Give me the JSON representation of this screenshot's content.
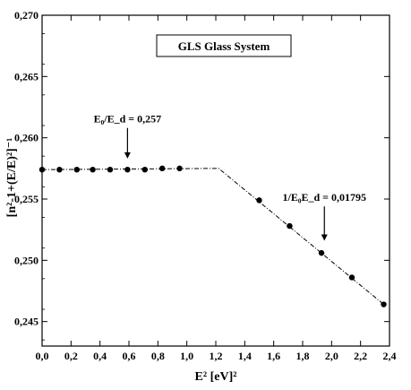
{
  "chart_data": {
    "type": "scatter",
    "title": "GLS Glass System",
    "xlabel": "E² [eV]²",
    "ylabel": "[n²-1+(E/E)²]⁻¹",
    "xlim": [
      0.0,
      2.4
    ],
    "ylim": [
      0.243,
      0.27
    ],
    "x_ticks": [
      "0,0",
      "0,2",
      "0,4",
      "0,6",
      "0,8",
      "1,0",
      "1,2",
      "1,4",
      "1,6",
      "1,8",
      "2,0",
      "2,2",
      "2,4"
    ],
    "y_ticks": [
      "0,245",
      "0,250",
      "0,255",
      "0,260",
      "0,265",
      "0,270"
    ],
    "y_tick_values": [
      0.245,
      0.25,
      0.255,
      0.26,
      0.265,
      0.27
    ],
    "grid": false,
    "series": [
      {
        "points": [
          [
            0.0,
            0.2574
          ],
          [
            0.12,
            0.2574
          ],
          [
            0.24,
            0.2574
          ],
          [
            0.35,
            0.2574
          ],
          [
            0.47,
            0.2574
          ],
          [
            0.59,
            0.2574
          ],
          [
            0.71,
            0.2574
          ],
          [
            0.83,
            0.2575
          ],
          [
            0.95,
            0.2575
          ],
          [
            1.5,
            0.2549
          ],
          [
            1.71,
            0.2528
          ],
          [
            1.93,
            0.2506
          ],
          [
            2.14,
            0.2486
          ],
          [
            2.36,
            0.2464
          ]
        ]
      }
    ],
    "fit_line": [
      [
        0.0,
        0.2574
      ],
      [
        1.22,
        0.2575
      ],
      [
        2.36,
        0.2464
      ]
    ],
    "annotations": [
      {
        "text": "E₀/E_d = 0,257",
        "arrow_x": 0.59,
        "arrow_from": 0.2608,
        "arrow_to": 0.2583
      },
      {
        "text": "1/E₀E_d = 0,01795",
        "arrow_x": 1.95,
        "arrow_from": 0.2544,
        "arrow_to": 0.2516
      }
    ]
  }
}
